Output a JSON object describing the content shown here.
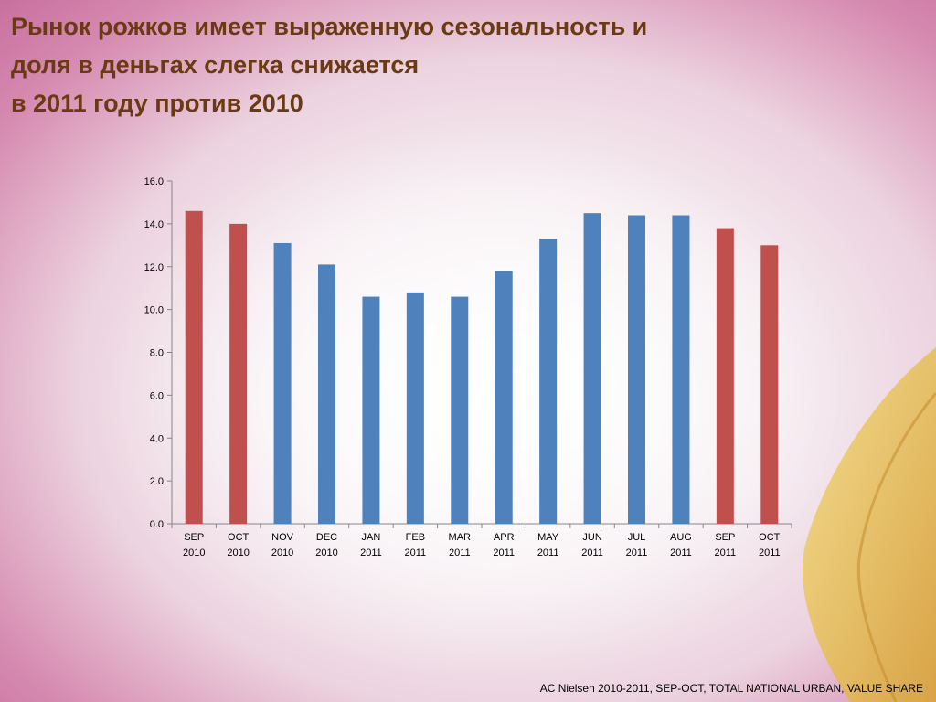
{
  "title_lines": [
    "Рынок рожков имеет выраженную сезональность и",
    "доля в деньгах слегка снижается",
    "в 2011 году против 2010"
  ],
  "source": "AC Nielsen 2010-2011, SEP-OCT, TOTAL NATIONAL URBAN, VALUE SHARE",
  "colors": {
    "highlight": "#c0504d",
    "normal": "#4f81bd",
    "title": "#6a3a12"
  },
  "chart_data": {
    "type": "bar",
    "categories": [
      [
        "SEP",
        "2010"
      ],
      [
        "OCT",
        "2010"
      ],
      [
        "NOV",
        "2010"
      ],
      [
        "DEC",
        "2010"
      ],
      [
        "JAN",
        "2011"
      ],
      [
        "FEB",
        "2011"
      ],
      [
        "MAR",
        "2011"
      ],
      [
        "APR",
        "2011"
      ],
      [
        "MAY",
        "2011"
      ],
      [
        "JUN",
        "2011"
      ],
      [
        "JUL",
        "2011"
      ],
      [
        "AUG",
        "2011"
      ],
      [
        "SEP",
        "2011"
      ],
      [
        "OCT",
        "2011"
      ]
    ],
    "values": [
      14.6,
      14.0,
      13.1,
      12.1,
      10.6,
      10.8,
      10.6,
      11.8,
      13.3,
      14.5,
      14.4,
      14.4,
      13.8,
      13.0
    ],
    "bar_colors": [
      "highlight",
      "highlight",
      "normal",
      "normal",
      "normal",
      "normal",
      "normal",
      "normal",
      "normal",
      "normal",
      "normal",
      "normal",
      "highlight",
      "highlight"
    ],
    "ylim": [
      0,
      16
    ],
    "yticks": [
      "0.0",
      "2.0",
      "4.0",
      "6.0",
      "8.0",
      "10.0",
      "12.0",
      "14.0",
      "16.0"
    ],
    "grid": false,
    "title": "",
    "xlabel": "",
    "ylabel": ""
  }
}
